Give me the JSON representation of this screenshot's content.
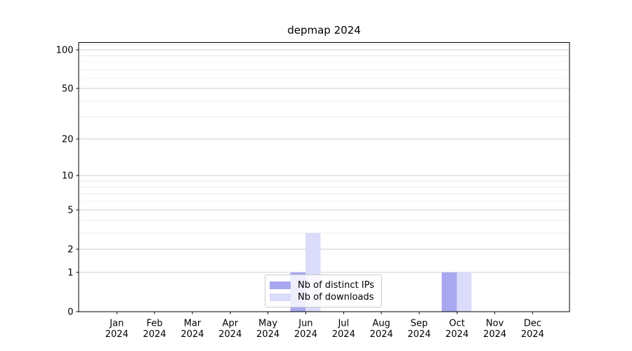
{
  "chart_data": {
    "type": "bar",
    "title": "depmap 2024",
    "categories": [
      "Jan",
      "Feb",
      "Mar",
      "Apr",
      "May",
      "Jun",
      "Jul",
      "Aug",
      "Sep",
      "Oct",
      "Nov",
      "Dec"
    ],
    "x_year_label": "2024",
    "series": [
      {
        "name": "Nb of distinct IPs",
        "color": "#a8a8f0",
        "values": [
          0,
          0,
          0,
          0,
          0,
          1,
          0,
          0,
          0,
          1,
          0,
          0
        ]
      },
      {
        "name": "Nb of downloads",
        "color": "#dbdbfa",
        "values": [
          0,
          0,
          0,
          0,
          0,
          3,
          0,
          0,
          0,
          1,
          0,
          0
        ]
      }
    ],
    "xlabel": "",
    "ylabel": "",
    "yscale": "log1p",
    "y_ticks": [
      0,
      1,
      2,
      5,
      10,
      20,
      50,
      100
    ],
    "y_minor_ticks": [
      3,
      4,
      6,
      7,
      8,
      9,
      30,
      40,
      60,
      70,
      80,
      90,
      110
    ],
    "ylim": [
      0,
      114
    ],
    "grid": "horizontal",
    "legend_position": "lower center",
    "colors": {
      "major_grid": "#cfcfcf",
      "minor_grid": "#eaeaea",
      "spine": "#000000",
      "legend_border": "#cccccc"
    }
  }
}
